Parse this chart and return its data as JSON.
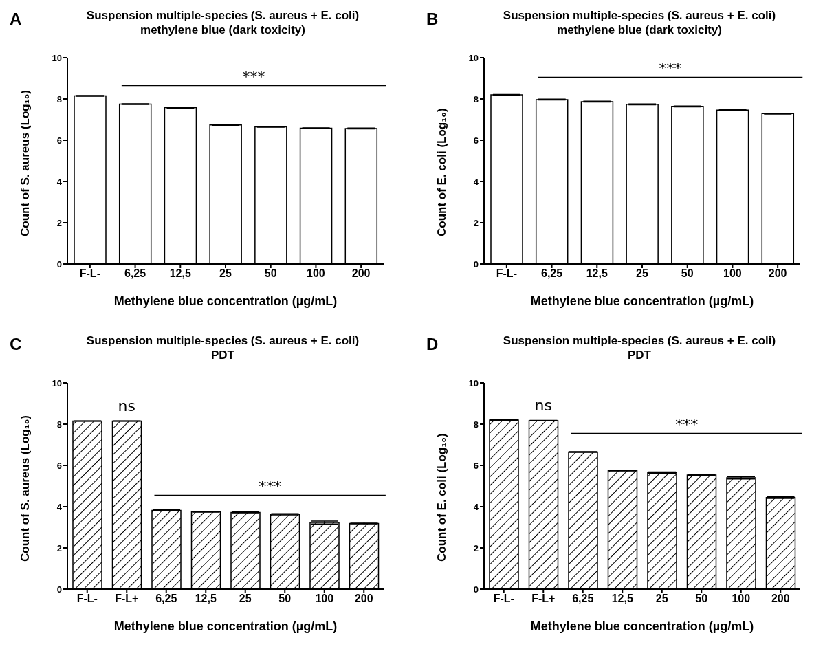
{
  "chart_data": [
    {
      "type": "bar",
      "title": "Suspension multiple-species (S. aureus + E. coli)",
      "subtitle": "methylene blue (dark toxicity)",
      "xlabel": "Methylene blue concentration (µg/mL)",
      "ylabel": "Count of S. aureus (Log₁₀)",
      "categories": [
        "F-L-",
        "6,25",
        "12,5",
        "25",
        "50",
        "100",
        "200"
      ],
      "values": [
        8.15,
        7.75,
        7.58,
        6.74,
        6.65,
        6.58,
        6.57
      ],
      "errors": [
        0.02,
        0.02,
        0.02,
        0.02,
        0.02,
        0.02,
        0.02
      ],
      "color": "#ffffff",
      "ylim": [
        0,
        10
      ],
      "yticks": [
        0,
        2,
        4,
        6,
        8,
        10
      ],
      "grid": false,
      "annotations": [
        "A"
      ],
      "ref_lines": [
        {
          "axis": "y",
          "value": 8.65,
          "label": "***"
        }
      ]
    },
    {
      "type": "bar",
      "title": "Suspension multiple-species (S. aureus + E. coli)",
      "subtitle": "methylene blue (dark toxicity)",
      "xlabel": "Methylene blue concentration (µg/mL)",
      "ylabel": "Count of E. coli (Log₁₀)",
      "categories": [
        "F-L-",
        "6,25",
        "12,5",
        "25",
        "50",
        "100",
        "200"
      ],
      "values": [
        8.2,
        7.97,
        7.87,
        7.74,
        7.64,
        7.46,
        7.29
      ],
      "errors": [
        0.02,
        0.02,
        0.02,
        0.02,
        0.02,
        0.02,
        0.02
      ],
      "color": "#ffffff",
      "ylim": [
        0,
        10
      ],
      "yticks": [
        0,
        2,
        4,
        6,
        8,
        10
      ],
      "grid": false,
      "annotations": [
        "B"
      ],
      "ref_lines": [
        {
          "axis": "y",
          "value": 9.05,
          "label": "***"
        }
      ]
    },
    {
      "type": "bar",
      "title": "Suspension multiple-species (S. aureus + E. coli)",
      "subtitle": "PDT",
      "xlabel": "Methylene blue concentration (µg/mL)",
      "ylabel": "Count of S. aureus (Log₁₀)",
      "categories": [
        "F-L-",
        "F-L+",
        "6,25",
        "12,5",
        "25",
        "50",
        "100",
        "200"
      ],
      "values": [
        8.15,
        8.15,
        3.82,
        3.75,
        3.72,
        3.63,
        3.23,
        3.18
      ],
      "errors": [
        0.01,
        0.01,
        0.02,
        0.02,
        0.02,
        0.03,
        0.07,
        0.05
      ],
      "color": "#000000",
      "ylim": [
        0,
        10
      ],
      "yticks": [
        0,
        2,
        4,
        6,
        8,
        10
      ],
      "grid": false,
      "annotations": [
        "C",
        "ns"
      ],
      "ref_lines": [
        {
          "axis": "y",
          "value": 4.55,
          "label": "***"
        }
      ]
    },
    {
      "type": "bar",
      "title": "Suspension multiple-species (S. aureus + E. coli)",
      "subtitle": "PDT",
      "xlabel": "Methylene blue concentration (µg/mL)",
      "ylabel": "Count of E. coli (Log₁₀)",
      "categories": [
        "F-L-",
        "F-L+",
        "6,25",
        "12,5",
        "25",
        "50",
        "100",
        "200"
      ],
      "values": [
        8.2,
        8.17,
        6.65,
        5.75,
        5.65,
        5.53,
        5.4,
        4.44
      ],
      "errors": [
        0.01,
        0.01,
        0.02,
        0.02,
        0.03,
        0.02,
        0.06,
        0.04
      ],
      "color": "#000000",
      "ylim": [
        0,
        10
      ],
      "yticks": [
        0,
        2,
        4,
        6,
        8,
        10
      ],
      "grid": false,
      "annotations": [
        "D",
        "ns"
      ],
      "ref_lines": [
        {
          "axis": "y",
          "value": 7.55,
          "label": "***"
        }
      ]
    }
  ]
}
